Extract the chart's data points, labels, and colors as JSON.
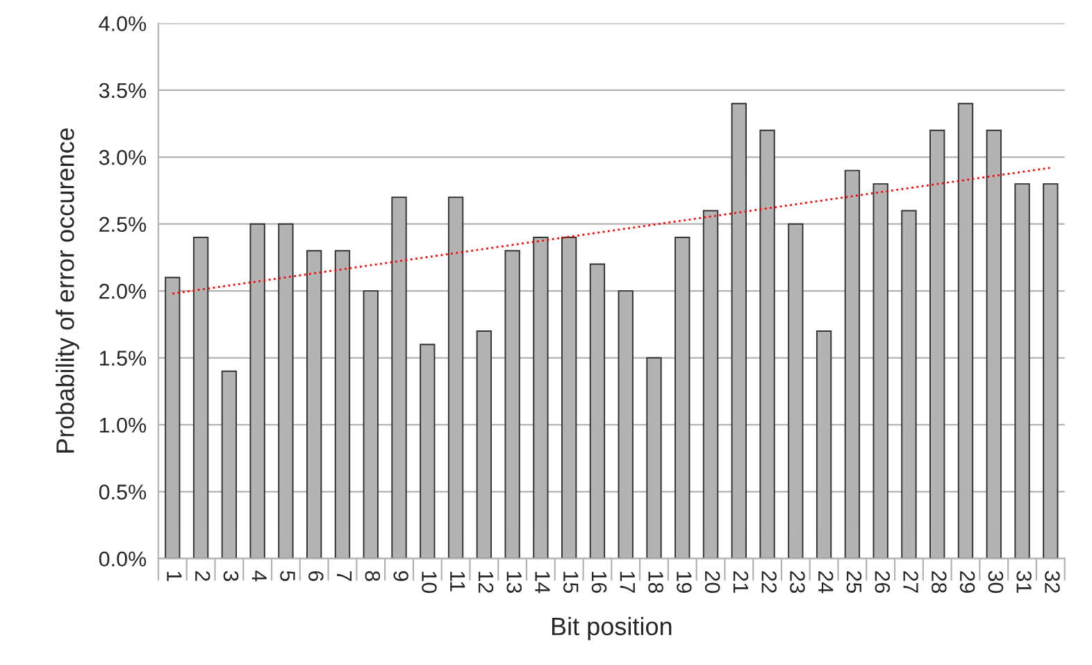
{
  "chart_data": {
    "type": "bar",
    "xlabel": "Bit position",
    "ylabel": "Probability of error occurence",
    "categories": [
      "1",
      "2",
      "3",
      "4",
      "5",
      "6",
      "7",
      "8",
      "9",
      "10",
      "11",
      "12",
      "13",
      "14",
      "15",
      "16",
      "17",
      "18",
      "19",
      "20",
      "21",
      "22",
      "23",
      "24",
      "25",
      "26",
      "27",
      "28",
      "29",
      "30",
      "31",
      "32"
    ],
    "series": [
      {
        "color": "#b3b3b3",
        "values": [
          2.1,
          2.4,
          1.4,
          2.5,
          2.5,
          2.3,
          2.3,
          2.0,
          2.7,
          1.6,
          2.7,
          1.7,
          2.3,
          2.4,
          2.4,
          2.2,
          2.0,
          1.5,
          2.4,
          2.6,
          3.4,
          3.2,
          2.5,
          1.7,
          2.9,
          2.8,
          2.6,
          3.2,
          3.4,
          3.2,
          2.8,
          2.8
        ]
      },
      {
        "type": "line",
        "color": "#ff0000",
        "line_style": "dotted",
        "x": [
          "1",
          "32"
        ],
        "values": [
          1.98,
          2.92
        ]
      }
    ],
    "ylim": [
      0,
      4
    ],
    "yticks": [
      {
        "value": 0,
        "label": "0.0%"
      },
      {
        "value": 0.5,
        "label": "0.5%"
      },
      {
        "value": 1,
        "label": "1.0%"
      },
      {
        "value": 1.5,
        "label": "1.5%"
      },
      {
        "value": 2,
        "label": "2.0%"
      },
      {
        "value": 2.5,
        "label": "2.5%"
      },
      {
        "value": 3,
        "label": "3.0%"
      },
      {
        "value": 3.5,
        "label": "3.5%"
      },
      {
        "value": 4,
        "label": "4.0%"
      }
    ],
    "grid": "y",
    "legend": false
  }
}
